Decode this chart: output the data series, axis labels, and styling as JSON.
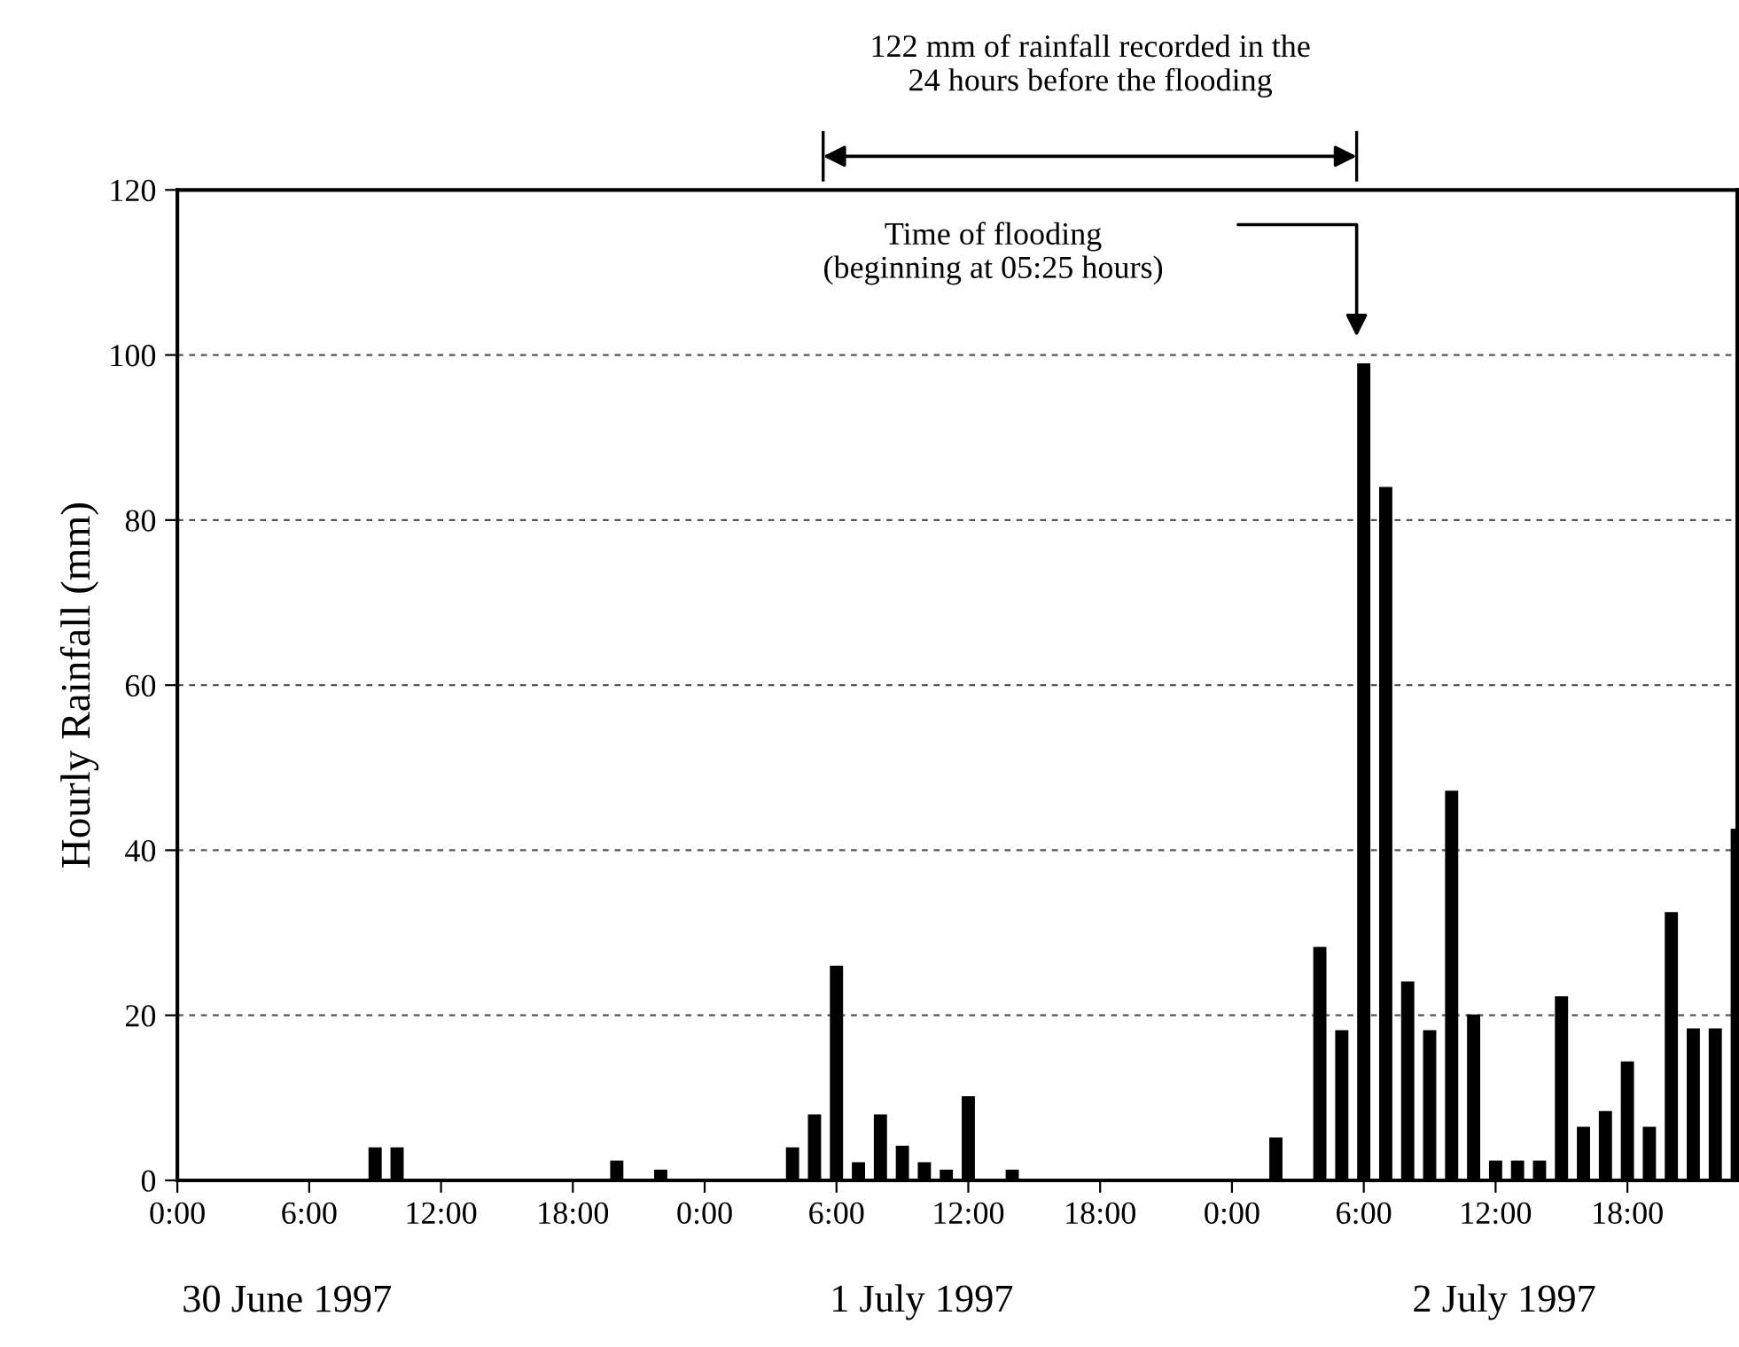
{
  "chart_data": {
    "type": "bar",
    "ylabel": "Hourly Rainfall (mm)",
    "color": "#000000",
    "x": [
      "1997-06-30T09:00",
      "1997-06-30T10:00",
      "1997-06-30T20:00",
      "1997-06-30T22:00",
      "1997-07-01T04:00",
      "1997-07-01T05:00",
      "1997-07-01T06:00",
      "1997-07-01T07:00",
      "1997-07-01T08:00",
      "1997-07-01T09:00",
      "1997-07-01T10:00",
      "1997-07-01T11:00",
      "1997-07-01T12:00",
      "1997-07-01T14:00",
      "1997-07-02T02:00",
      "1997-07-02T04:00",
      "1997-07-02T05:00",
      "1997-07-02T06:00",
      "1997-07-02T07:00",
      "1997-07-02T08:00",
      "1997-07-02T09:00",
      "1997-07-02T10:00",
      "1997-07-02T11:00",
      "1997-07-02T12:00",
      "1997-07-02T13:00",
      "1997-07-02T14:00",
      "1997-07-02T15:00",
      "1997-07-02T16:00",
      "1997-07-02T17:00",
      "1997-07-02T18:00",
      "1997-07-02T19:00",
      "1997-07-02T20:00",
      "1997-07-02T21:00",
      "1997-07-02T22:00",
      "1997-07-02T23:00"
    ],
    "values": [
      4,
      4,
      2.4,
      1.3,
      4,
      8,
      26,
      2.2,
      8,
      4.2,
      2.2,
      1.3,
      10.2,
      1.3,
      5.2,
      28.3,
      18.2,
      99,
      84,
      24.1,
      18.2,
      47.2,
      20.1,
      2.4,
      2.4,
      2.4,
      22.3,
      6.5,
      8.4,
      14.4,
      6.5,
      32.5,
      18.4,
      18.4,
      42.6
    ],
    "xlim": [
      "1997-06-30T00:00",
      "1997-07-02T23:00"
    ],
    "xticks": [
      {
        "value": "1997-06-30T00:00",
        "label": "0:00"
      },
      {
        "value": "1997-06-30T06:00",
        "label": "6:00"
      },
      {
        "value": "1997-06-30T12:00",
        "label": "12:00"
      },
      {
        "value": "1997-06-30T18:00",
        "label": "18:00"
      },
      {
        "value": "1997-07-01T00:00",
        "label": "0:00"
      },
      {
        "value": "1997-07-01T06:00",
        "label": "6:00"
      },
      {
        "value": "1997-07-01T12:00",
        "label": "12:00"
      },
      {
        "value": "1997-07-01T18:00",
        "label": "18:00"
      },
      {
        "value": "1997-07-02T00:00",
        "label": "0:00"
      },
      {
        "value": "1997-07-02T06:00",
        "label": "6:00"
      },
      {
        "value": "1997-07-02T12:00",
        "label": "12:00"
      },
      {
        "value": "1997-07-02T18:00",
        "label": "18:00"
      }
    ],
    "ylim": [
      0,
      120
    ],
    "yticks": [
      0,
      20,
      40,
      60,
      80,
      100,
      120
    ],
    "grid": "y",
    "annotations": [
      "30 June 1997",
      "1 July 1997",
      "2 July 1997",
      "122 mm of rainfall recorded in the\n24 hours before the flooding",
      "Time of flooding\n(beginning at 05:25 hours)"
    ]
  }
}
